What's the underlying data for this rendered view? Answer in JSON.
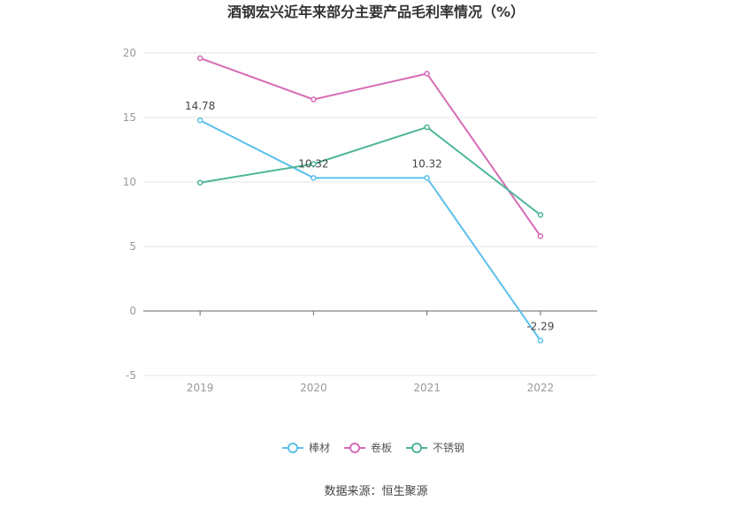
{
  "chart_data": {
    "type": "line",
    "title": "酒钢宏兴近年来部分主要产品毛利率情况（%）",
    "categories": [
      "2019",
      "2020",
      "2021",
      "2022"
    ],
    "ylim": [
      -5,
      20
    ],
    "yticks": [
      20,
      15,
      10,
      5,
      0,
      -5
    ],
    "grid": true,
    "legend_position": "bottom",
    "series": [
      {
        "name": "棒材",
        "color": "#5bc0eb",
        "values": [
          14.78,
          10.32,
          10.32,
          -2.29
        ],
        "labels": [
          "14.78",
          "10.32",
          "10.32",
          "-2.29"
        ]
      },
      {
        "name": "卷板",
        "color": "#d66bb6",
        "values": [
          19.6,
          16.4,
          18.4,
          5.8
        ]
      },
      {
        "name": "不锈钢",
        "color": "#4cb59a",
        "values": [
          9.95,
          11.4,
          14.25,
          7.45
        ]
      }
    ]
  },
  "source": "数据来源：恒生聚源"
}
